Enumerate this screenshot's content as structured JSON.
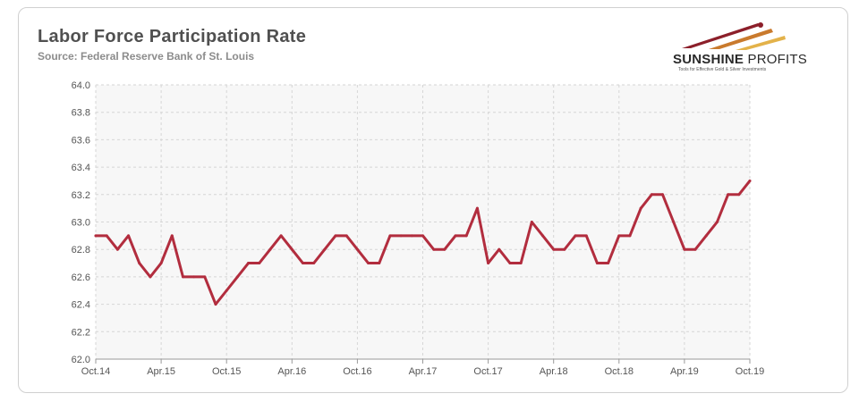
{
  "header": {
    "title": "Labor Force Participation Rate",
    "subtitle": "Source: Federal Reserve Bank of St. Louis"
  },
  "logo": {
    "name_bold": "SUNSHINE",
    "name_thin": "PROFITS",
    "tagline": "Tools for Effective Gold & Silver Investments"
  },
  "colors": {
    "line": "#b22d3e",
    "grid": "#d6d6d6",
    "plot_bg": "#f7f7f7",
    "axis": "#9a9a9a"
  },
  "chart_data": {
    "type": "line",
    "title": "Labor Force Participation Rate",
    "subtitle": "Source: Federal Reserve Bank of St. Louis",
    "xlabel": "",
    "ylabel": "",
    "ylim": [
      62.0,
      64.0
    ],
    "yticks": [
      "62.0",
      "62.2",
      "62.4",
      "62.6",
      "62.8",
      "63.0",
      "63.2",
      "63.4",
      "63.6",
      "63.8",
      "64.0"
    ],
    "xtick_labels": [
      "Oct.14",
      "Apr.15",
      "Oct.15",
      "Apr.16",
      "Oct.16",
      "Apr.17",
      "Oct.17",
      "Apr.18",
      "Oct.18",
      "Apr.19",
      "Oct.19"
    ],
    "grid": true,
    "x": [
      "Oct.14",
      "Nov.14",
      "Dec.14",
      "Jan.15",
      "Feb.15",
      "Mar.15",
      "Apr.15",
      "May.15",
      "Jun.15",
      "Jul.15",
      "Aug.15",
      "Sep.15",
      "Oct.15",
      "Nov.15",
      "Dec.15",
      "Jan.16",
      "Feb.16",
      "Mar.16",
      "Apr.16",
      "May.16",
      "Jun.16",
      "Jul.16",
      "Aug.16",
      "Sep.16",
      "Oct.16",
      "Nov.16",
      "Dec.16",
      "Jan.17",
      "Feb.17",
      "Mar.17",
      "Apr.17",
      "May.17",
      "Jun.17",
      "Jul.17",
      "Aug.17",
      "Sep.17",
      "Oct.17",
      "Nov.17",
      "Dec.17",
      "Jan.18",
      "Feb.18",
      "Mar.18",
      "Apr.18",
      "May.18",
      "Jun.18",
      "Jul.18",
      "Aug.18",
      "Sep.18",
      "Oct.18",
      "Nov.18",
      "Dec.18",
      "Jan.19",
      "Feb.19",
      "Mar.19",
      "Apr.19",
      "May.19",
      "Jun.19",
      "Jul.19",
      "Aug.19",
      "Sep.19",
      "Oct.19"
    ],
    "series": [
      {
        "values": [
          62.9,
          62.9,
          62.8,
          62.9,
          62.7,
          62.6,
          62.7,
          62.9,
          62.6,
          62.6,
          62.6,
          62.4,
          62.5,
          62.6,
          62.7,
          62.7,
          62.8,
          62.9,
          62.8,
          62.7,
          62.7,
          62.8,
          62.9,
          62.9,
          62.8,
          62.7,
          62.7,
          62.9,
          62.9,
          62.9,
          62.9,
          62.8,
          62.8,
          62.9,
          62.9,
          63.1,
          62.7,
          62.8,
          62.7,
          62.7,
          63.0,
          62.9,
          62.8,
          62.8,
          62.9,
          62.9,
          62.7,
          62.7,
          62.9,
          62.9,
          63.1,
          63.2,
          63.2,
          63.0,
          62.8,
          62.8,
          62.9,
          63.0,
          63.2,
          63.2,
          63.3
        ]
      }
    ]
  }
}
